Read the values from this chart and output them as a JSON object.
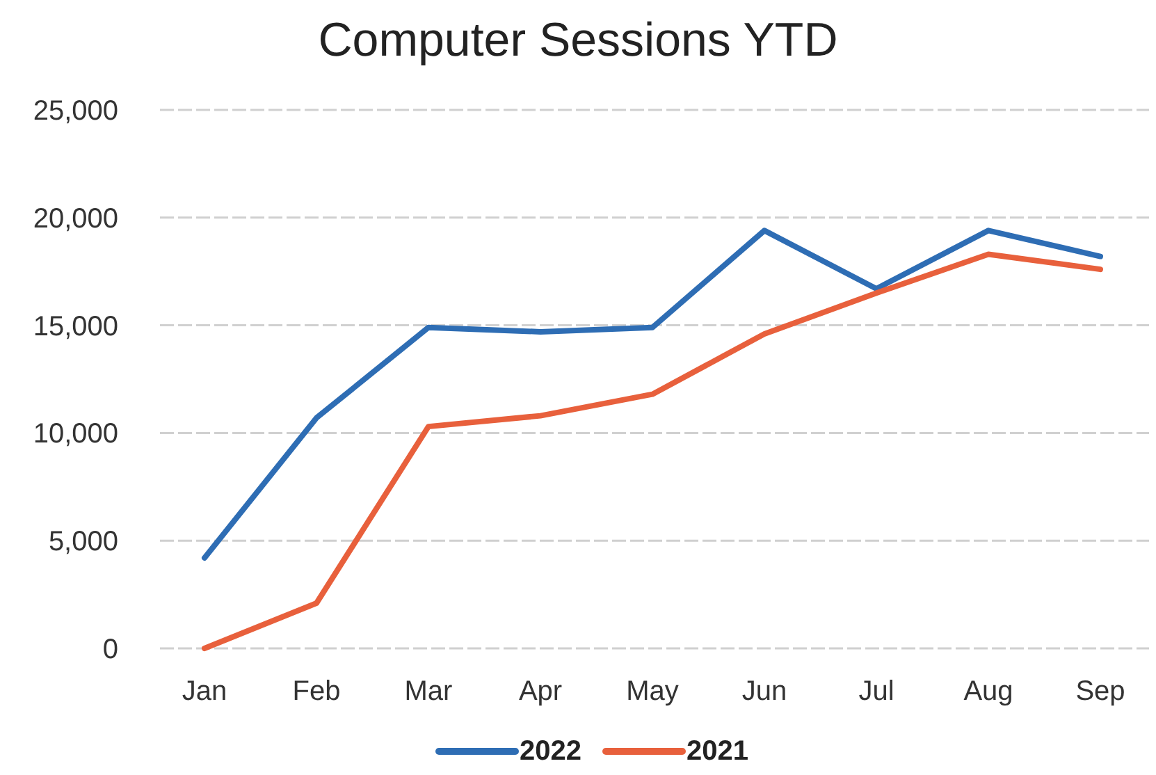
{
  "chart_data": {
    "type": "line",
    "title": "Computer Sessions YTD",
    "categories": [
      "Jan",
      "Feb",
      "Mar",
      "Apr",
      "May",
      "Jun",
      "Jul",
      "Aug",
      "Sep"
    ],
    "series": [
      {
        "name": "2022",
        "color": "#2e6db4",
        "values": [
          4200,
          10700,
          14900,
          14700,
          14900,
          19400,
          16700,
          19400,
          18200
        ]
      },
      {
        "name": "2021",
        "color": "#e8603c",
        "values": [
          0,
          2100,
          10300,
          10800,
          11800,
          14600,
          16500,
          18300,
          17600
        ]
      }
    ],
    "ylim": [
      0,
      25000
    ],
    "yticks": [
      {
        "value": 0,
        "label": "0"
      },
      {
        "value": 5000,
        "label": "5,000"
      },
      {
        "value": 10000,
        "label": "10,000"
      },
      {
        "value": 15000,
        "label": "15,000"
      },
      {
        "value": 20000,
        "label": "20,000"
      },
      {
        "value": 25000,
        "label": "25,000"
      }
    ],
    "grid": "y",
    "legend": "bottom",
    "marker": "none",
    "line_style": "solid"
  }
}
